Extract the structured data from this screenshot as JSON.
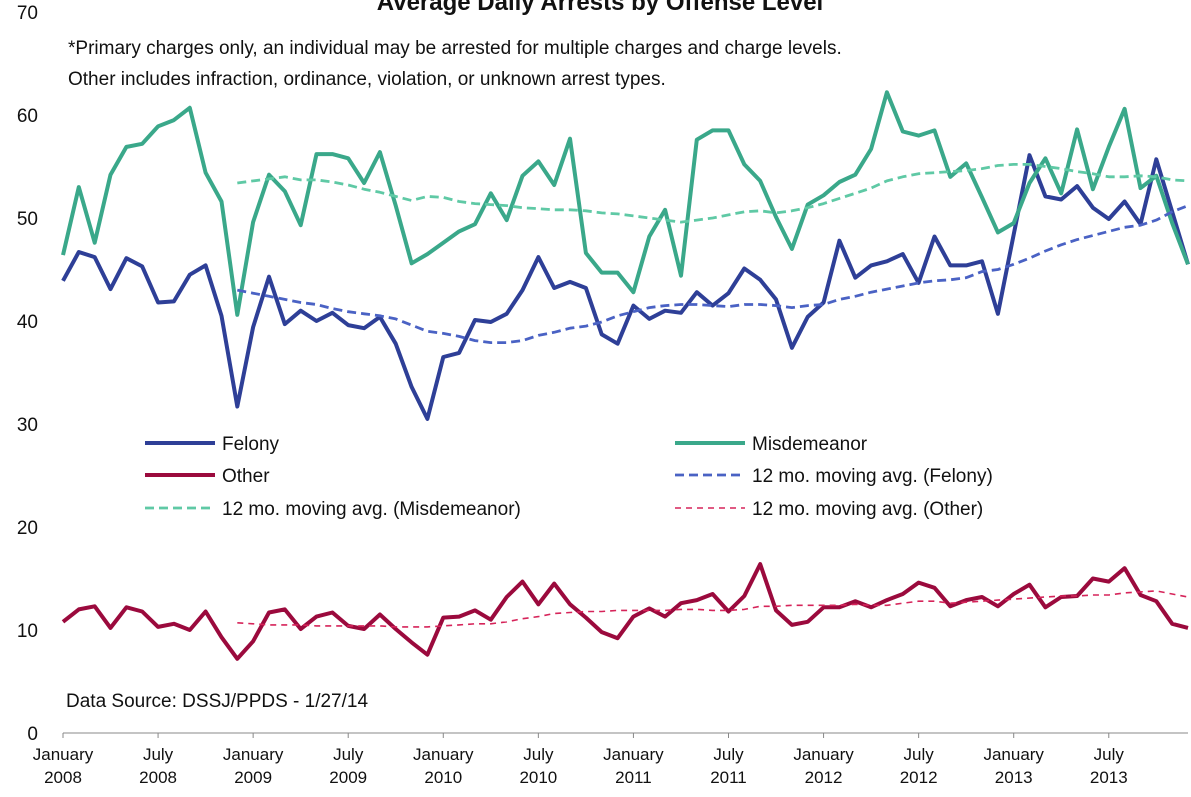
{
  "chart_data": {
    "type": "line",
    "title": "Average Daily Arrests by Offense Level",
    "annotations": [
      "*Primary charges only, an individual may be arrested for multiple charges and charge levels.",
      "Other includes infraction, ordinance, violation, or unknown arrest types.",
      "Data Source: DSSJ/PPDS - 1/27/14"
    ],
    "categories": [
      "January 2008",
      null,
      null,
      null,
      null,
      null,
      "July 2008",
      null,
      null,
      null,
      null,
      null,
      "January 2009",
      null,
      null,
      null,
      null,
      null,
      "July 2009",
      null,
      null,
      null,
      null,
      null,
      "January 2010",
      null,
      null,
      null,
      null,
      null,
      "July 2010",
      null,
      null,
      null,
      null,
      null,
      "January 2011",
      null,
      null,
      null,
      null,
      null,
      "July 2011",
      null,
      null,
      null,
      null,
      null,
      "January 2012",
      null,
      null,
      null,
      null,
      null,
      "July 2012",
      null,
      null,
      null,
      null,
      null,
      "January 2013",
      null,
      null,
      null,
      null,
      null,
      "July 2013",
      null,
      null,
      null,
      null,
      null
    ],
    "ylim": [
      0,
      70
    ],
    "yticks": [
      0,
      10,
      20,
      30,
      40,
      50,
      60,
      70
    ],
    "grid": false,
    "legend": "center",
    "series": [
      {
        "name": "Felony",
        "color": "#2e3f97",
        "dash": false,
        "values": [
          43.9,
          46.7,
          46.2,
          43.1,
          46.1,
          45.3,
          41.8,
          41.9,
          44.5,
          45.4,
          40.5,
          31.7,
          39.4,
          44.3,
          39.7,
          41.0,
          40.0,
          40.8,
          39.6,
          39.3,
          40.4,
          37.8,
          33.6,
          30.5,
          36.5,
          36.9,
          40.1,
          39.9,
          40.7,
          43.0,
          46.2,
          43.2,
          43.8,
          43.2,
          38.7,
          37.8,
          41.5,
          40.2,
          41.0,
          40.8,
          42.8,
          41.5,
          42.7,
          45.1,
          44.0,
          42.1,
          37.4,
          40.4,
          41.8,
          47.8,
          44.2,
          45.4,
          45.8,
          46.5,
          43.7,
          48.2,
          45.4,
          45.4,
          45.8,
          40.7,
          48.4,
          56.1,
          52.1,
          51.8,
          53.1,
          51.0,
          49.9,
          51.6,
          49.4,
          55.7,
          50.6,
          45.5
        ]
      },
      {
        "name": "Misdemeanor",
        "color": "#3aa88a",
        "dash": false,
        "values": [
          46.4,
          53.0,
          47.6,
          54.2,
          56.9,
          57.2,
          58.9,
          59.5,
          60.7,
          54.4,
          51.6,
          40.6,
          49.6,
          54.2,
          52.6,
          49.3,
          56.2,
          56.2,
          55.8,
          53.4,
          56.4,
          51.2,
          45.6,
          46.5,
          47.6,
          48.7,
          49.4,
          52.4,
          49.8,
          54.1,
          55.5,
          53.2,
          57.7,
          46.6,
          44.7,
          44.7,
          42.8,
          48.2,
          50.8,
          44.4,
          57.6,
          58.5,
          58.5,
          55.2,
          53.6,
          50.1,
          47.0,
          51.3,
          52.2,
          53.5,
          54.2,
          56.7,
          62.2,
          58.4,
          58.0,
          58.5,
          54.0,
          55.3,
          52.0,
          48.6,
          49.5,
          53.4,
          55.8,
          52.4,
          58.6,
          52.8,
          56.9,
          60.6,
          52.9,
          54.1,
          49.5,
          45.5
        ]
      },
      {
        "name": "Other",
        "color": "#9b0a3d",
        "dash": false,
        "values": [
          10.8,
          12.0,
          12.3,
          10.2,
          12.2,
          11.8,
          10.3,
          10.6,
          10.0,
          11.8,
          9.3,
          7.2,
          8.9,
          11.7,
          12.0,
          10.1,
          11.3,
          11.7,
          10.4,
          10.1,
          11.5,
          10.1,
          8.8,
          7.6,
          11.2,
          11.3,
          11.9,
          11.0,
          13.2,
          14.7,
          12.5,
          14.5,
          12.5,
          11.2,
          9.8,
          9.2,
          11.3,
          12.1,
          11.3,
          12.6,
          12.9,
          13.5,
          11.8,
          13.3,
          16.4,
          11.9,
          10.5,
          10.8,
          12.2,
          12.2,
          12.8,
          12.2,
          12.9,
          13.5,
          14.6,
          14.1,
          12.3,
          12.9,
          13.2,
          12.3,
          13.5,
          14.4,
          12.2,
          13.2,
          13.3,
          15.0,
          14.7,
          16.0,
          13.4,
          12.8,
          10.6,
          10.2
        ]
      },
      {
        "name": "12 mo. moving avg. (Felony)",
        "color": "#4a62c4",
        "dash": true,
        "values": [
          null,
          null,
          null,
          null,
          null,
          null,
          null,
          null,
          null,
          null,
          null,
          43.0,
          42.7,
          42.4,
          42.1,
          41.8,
          41.6,
          41.2,
          40.9,
          40.7,
          40.5,
          40.2,
          39.6,
          39.0,
          38.8,
          38.5,
          38.1,
          37.9,
          37.9,
          38.1,
          38.6,
          38.9,
          39.3,
          39.5,
          39.9,
          40.5,
          40.9,
          41.3,
          41.5,
          41.6,
          41.6,
          41.5,
          41.4,
          41.6,
          41.6,
          41.5,
          41.3,
          41.5,
          41.6,
          42.1,
          42.4,
          42.8,
          43.1,
          43.4,
          43.7,
          43.9,
          44.0,
          44.2,
          44.8,
          45.0,
          45.5,
          46.1,
          46.8,
          47.4,
          47.9,
          48.3,
          48.7,
          49.1,
          49.3,
          49.8,
          50.6,
          51.2
        ]
      },
      {
        "name": "12 mo. moving avg. (Misdemeanor)",
        "color": "#5fc9a5",
        "dash": true,
        "values": [
          null,
          null,
          null,
          null,
          null,
          null,
          null,
          null,
          null,
          null,
          null,
          53.4,
          53.6,
          53.8,
          54.0,
          53.7,
          53.7,
          53.5,
          53.2,
          52.8,
          52.5,
          52.1,
          51.7,
          52.1,
          52.0,
          51.6,
          51.4,
          51.3,
          51.2,
          51.0,
          50.9,
          50.8,
          50.8,
          50.7,
          50.5,
          50.4,
          50.2,
          50.0,
          49.8,
          49.6,
          49.8,
          50.0,
          50.3,
          50.6,
          50.7,
          50.5,
          50.7,
          51.0,
          51.4,
          51.9,
          52.4,
          52.9,
          53.6,
          54.0,
          54.3,
          54.4,
          54.5,
          54.6,
          54.8,
          55.1,
          55.2,
          55.2,
          55.0,
          54.8,
          54.5,
          54.3,
          54.0,
          54.0,
          54.1,
          54.0,
          53.7,
          53.6
        ]
      },
      {
        "name": "12 mo. moving avg. (Other)",
        "color": "#d6245a",
        "dash": true,
        "values": [
          null,
          null,
          null,
          null,
          null,
          null,
          null,
          null,
          null,
          null,
          null,
          10.7,
          10.6,
          10.5,
          10.5,
          10.5,
          10.4,
          10.4,
          10.4,
          10.4,
          10.4,
          10.3,
          10.3,
          10.3,
          10.4,
          10.5,
          10.6,
          10.6,
          10.8,
          11.1,
          11.3,
          11.6,
          11.7,
          11.8,
          11.8,
          11.9,
          11.9,
          11.9,
          11.9,
          12.0,
          12.0,
          11.9,
          11.9,
          12.0,
          12.3,
          12.3,
          12.4,
          12.4,
          12.4,
          12.4,
          12.5,
          12.4,
          12.4,
          12.6,
          12.8,
          12.8,
          12.6,
          12.7,
          12.8,
          12.9,
          13.0,
          13.1,
          13.2,
          13.3,
          13.3,
          13.4,
          13.4,
          13.6,
          13.7,
          13.8,
          13.5,
          13.2
        ]
      }
    ]
  }
}
